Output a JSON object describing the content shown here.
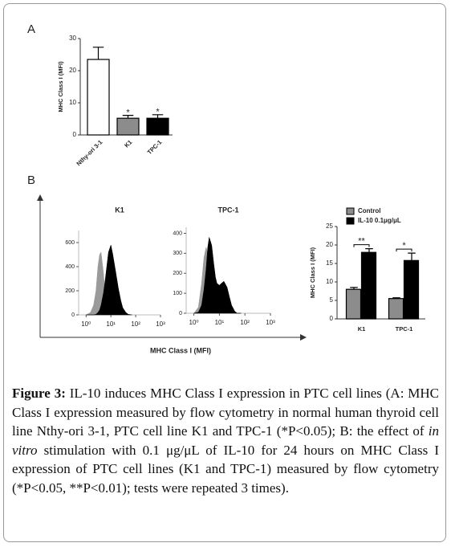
{
  "panel_labels": [
    "A",
    "B"
  ],
  "panel_b_xlabel": "MHC Class I (MFI)",
  "chart_data": [
    {
      "type": "bar",
      "ylabel": "MHC Class I (MFI)",
      "categories": [
        "Nthy-ori 3-1",
        "K1",
        "TPC-1"
      ],
      "values": [
        23.5,
        5.2,
        5.2
      ],
      "errors": [
        3.8,
        0.9,
        1.1
      ],
      "colors": [
        "#ffffff",
        "#8c8c8c",
        "#000000"
      ],
      "significance": [
        null,
        "*",
        "*"
      ],
      "ylim": [
        0,
        30
      ],
      "yticks": [
        0,
        10,
        20,
        30
      ]
    },
    {
      "type": "area",
      "title": "K1",
      "log_x": true,
      "x": [
        1,
        1.5,
        2,
        2.5,
        3,
        3.5,
        4,
        5,
        6,
        7,
        8,
        10,
        12,
        15,
        20,
        25,
        30,
        40,
        50,
        70
      ],
      "series": [
        {
          "color": "#9a9a9a",
          "values": [
            0,
            20,
            80,
            200,
            400,
            500,
            520,
            350,
            150,
            60,
            20,
            5,
            0,
            0,
            0,
            0,
            0,
            0,
            0,
            0
          ]
        },
        {
          "color": "#000000",
          "values": [
            0,
            0,
            0,
            5,
            20,
            40,
            80,
            180,
            300,
            420,
            520,
            580,
            500,
            380,
            220,
            120,
            60,
            20,
            5,
            0
          ]
        }
      ],
      "xlim": [
        0.5,
        1000
      ],
      "xticks": [
        {
          "value": 1,
          "label": "10⁰"
        },
        {
          "value": 10,
          "label": "10¹"
        },
        {
          "value": 100,
          "label": "10²"
        },
        {
          "value": 1000,
          "label": "10³"
        }
      ],
      "ylim": [
        0,
        700
      ],
      "yticks": [
        0,
        200,
        400,
        600
      ]
    },
    {
      "type": "area",
      "title": "TPC-1",
      "log_x": true,
      "x": [
        1,
        1.5,
        2,
        2.5,
        3,
        3.5,
        4,
        5,
        6,
        7,
        8,
        10,
        12,
        15,
        20,
        25,
        30,
        40,
        50,
        70
      ],
      "series": [
        {
          "color": "#9a9a9a",
          "values": [
            0,
            30,
            150,
            280,
            330,
            300,
            220,
            100,
            40,
            10,
            0,
            0,
            0,
            0,
            0,
            0,
            0,
            0,
            0,
            0
          ]
        },
        {
          "color": "#000000",
          "values": [
            0,
            5,
            40,
            120,
            220,
            330,
            380,
            340,
            250,
            180,
            150,
            140,
            150,
            160,
            130,
            80,
            40,
            10,
            0,
            0
          ]
        }
      ],
      "xlim": [
        0.5,
        1000
      ],
      "xticks": [
        {
          "value": 1,
          "label": "10⁰"
        },
        {
          "value": 10,
          "label": "10¹"
        },
        {
          "value": 100,
          "label": "10²"
        },
        {
          "value": 1000,
          "label": "10³"
        }
      ],
      "ylim": [
        0,
        430
      ],
      "yticks": [
        0,
        100,
        200,
        300,
        400
      ]
    },
    {
      "type": "bar",
      "ylabel": "MHC Class I (MFI)",
      "categories": [
        "K1",
        "TPC-1"
      ],
      "series": [
        {
          "name": "Control",
          "color": "#8c8c8c",
          "values": [
            8,
            5.5
          ],
          "errors": [
            0.5,
            0.2
          ]
        },
        {
          "name": "IL-10 0.1μg/μL",
          "color": "#000000",
          "values": [
            18,
            15.8
          ],
          "errors": [
            1,
            2
          ]
        }
      ],
      "significance": [
        "**",
        "*"
      ],
      "ylim": [
        0,
        25
      ],
      "yticks": [
        0,
        5,
        10,
        15,
        20,
        25
      ]
    }
  ],
  "caption": {
    "label": "Figure 3:",
    "parts": [
      "IL-10 induces MHC Class I expression in PTC cell lines (A: MHC Class I expression measured by flow cytometry in normal human thyroid cell line Nthy-ori 3-1, PTC cell line K1 and TPC-1 (*P<0.05); B: the effect of ",
      "in vitro",
      " stimulation with 0.1 μg/μL of IL-10 for 24 hours on MHC Class I expression of PTC cell lines (K1 and TPC-1) measured by flow cytometry (*P<0.05, **P<0.01); tests were repeated 3 times)."
    ]
  }
}
